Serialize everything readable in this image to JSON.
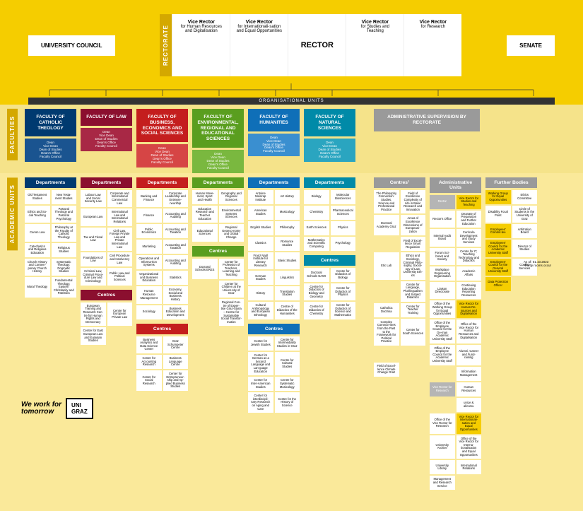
{
  "top": {
    "council": "UNIVERSITY COUNCIL",
    "senate": "SENATE",
    "rectorate": "RECTORATE",
    "rector": "RECTOR",
    "vrs": [
      {
        "t": "Vice Rector",
        "s": "for Human Resources and Digitalisation"
      },
      {
        "t": "Vice Rector",
        "s": "for Internationali-sation and Equal Opportunities"
      },
      {
        "t": "Vice Rector",
        "s": "for Studies and Teaching"
      },
      {
        "t": "Vice Rector",
        "s": "for Research"
      }
    ],
    "org_units": "ORGANISATIONAL UNITS"
  },
  "labels": {
    "faculties": "FACULTIES",
    "academic": "ACADEMIC UNITS"
  },
  "colors": {
    "theo": "#003a70",
    "theo2": "#1a5490",
    "law": "#8b0f2f",
    "law2": "#a82845",
    "bus": "#c41e1e",
    "bus2": "#d64545",
    "env": "#5a9e1f",
    "env2": "#7ab83f",
    "hum": "#0f6fb8",
    "hum2": "#3a8fd0",
    "nat": "#008aa8",
    "nat2": "#2aa5c0",
    "admin": "#9a9a9a",
    "admin2": "#b5b5b5",
    "yellow": "#f5cd00"
  },
  "faculties": [
    {
      "name": "FACULTY OF CATHOLIC THEOLOGY",
      "c": "theo",
      "sub": "Dean\nVice Dean\nDean of Studies\nDean's Office\nFaculty Council"
    },
    {
      "name": "FACULTY OF LAW",
      "c": "law",
      "sub": "Dean\nVice Dean\nDean of Studies\nDean's Office\nFaculty Council"
    },
    {
      "name": "FACULTY OF BUSINESS, ECONOMICS AND SOCIAL SCIENCES",
      "c": "bus",
      "sub": "Dean\nVice Dean\nDean of Studies\nDean's Office\nFaculty Council"
    },
    {
      "name": "FACULTY OF ENVIRONMENTAL, REGIONAL AND EDUCATIONAL SCIENCES",
      "c": "env",
      "sub": "Dean\nVice Dean\nDean of Studies\nDean's Office\nFaculty Council"
    },
    {
      "name": "FACULTY OF HUMANITIES",
      "c": "hum",
      "sub": "Dean\nVice Dean\nDean of Studies\nDean's Office\nFaculty Council"
    },
    {
      "name": "FACULTY OF NATURAL SCIENCES",
      "c": "nat",
      "sub": "Dean\nVice Dean\nDean of Studies\nDean's Office\nFaculty Council"
    },
    {
      "name": "ADMINISTRATIVE SUPERVISION BY RECTORATE",
      "c": "admin",
      "sub": ""
    }
  ],
  "columns": {
    "theo": {
      "dept": "Departments",
      "items": [
        "Old Testament Studies",
        "New Testa-ment Studies",
        "Ethics and So-cial Teaching",
        "Pastoral Theology and Pastoral Psychology",
        "Canon Law",
        "Philosophy at the Faculty of Catholic Theology",
        "Catechetics and Religious Education",
        "Religious Studies",
        "Church History and Contem-porary Church History",
        "Systematic Theology: Dogmatic Studies",
        "Moral Theology",
        "Fundamental Theology, Eastern Christianity and Patristics"
      ]
    },
    "law": {
      "dept": "Departments",
      "items": [
        "Labour Law and Social Security Law",
        "Corporate and International Commercial Law",
        "European Law",
        "International Law and International Relations",
        "Tax and Fiscal Law",
        "Civil Law, Foreign Private Law and Private International Law",
        "Foundations of Law",
        "Civil Procedure and Insolvency Law",
        "Criminal Law, Criminal Proce-dure Law and Criminology",
        "Public Law and Political Sciences"
      ],
      "centres": "Centres",
      "citems": [
        "European Training and Research Cen-tre for Human Rights and Democracy",
        "Centre for European Private Law",
        "Centre for East European Law and Eurasian Studies",
        ""
      ]
    },
    "bus": {
      "dept": "Departments",
      "items": [
        "Banking and Finance",
        "Corporate Leadership and Entrepre-neurship",
        "Finance",
        "Accounting and Auditing",
        "Public Economics",
        "Accounting and Taxation",
        "Marketing",
        "Accounting and Taxation",
        "Operations and Informa-tion Systems",
        "Accounting and Auditing",
        "Organizational and Business Education",
        "Statistics",
        "Human Resource Management",
        "Economy, Social and Business History",
        "Sociology",
        "Business Education and Development"
      ],
      "centres": "Centres",
      "citems": [
        "Business Analytics and Data Science Center",
        "Graz Schumpeter Centre",
        "Center for Accounting Research",
        "Business Language Centre",
        "Center for Social Research",
        "Center for Entrepreneur-ship and Ap-plied Business Studies"
      ]
    },
    "env": {
      "dept": "Departments",
      "items": [
        "Human Move-ment, Sport and Health",
        "Geography and Regional Sciences",
        "Education Research and Teacher Education",
        "Environmental Systems Sciences",
        "Educational Sciences",
        "Regional Geoeco-nomy and Global Change"
      ],
      "centres": "Centres",
      "citems": [
        "Doctoral Schools ERES",
        "Center for Profession of Teachers, Learning and Teaching",
        "",
        "Center for Children at the Univer-sity of Graz",
        "",
        "Regional Cen-tre of Exper-tise Graz-Styria – Centre for Sustainable Social Transfor-mation"
      ]
    },
    "hum": {
      "dept": "Departments",
      "items": [
        "Antoine Meinrap Institute",
        "Art History",
        "American Studies",
        "Musicology",
        "English Studies",
        "Philosophy",
        "Classics",
        "Romance Studies",
        "Franz Nabl Institute for Literary Research",
        "Slavic Studies",
        "German Studies",
        "Linguistics",
        "History",
        "Translation Studies",
        "Cultural Anthropology and European Ethnology",
        "Centre of Didactics of the Humanities"
      ],
      "centres": "Centres",
      "citems": [
        "Centre for Jewish Studies",
        "Centre for Intermediality Studies in Graz",
        "Center for German as a Second Language and Lan-guage Education",
        "Centre for Cultural Studies",
        "Centre for Inter-American Studies",
        "Centre for Systematic Musicology",
        "Center for interdiscipli-nary Research on Aging and Care",
        "Centre for the History of Science"
      ]
    },
    "nat": {
      "dept": "Departments",
      "items": [
        "Biology",
        "Molecular Biosciences",
        "Chemistry",
        "Pharmaceutical Sciences",
        "Earth Sciences",
        "Physics",
        "Mathematics and Scientific Computing",
        "Psychology"
      ],
      "centres": "Centres",
      "citems": [
        "Doctoral Schools NAWI",
        "Centre for Didactics of Biology",
        "Centre for Didactics of Biology and Geometry",
        "Centre for Didactics of Physics",
        "Centre for Didactics of Chemistry",
        "Centre for Didactics of Science and Mathematics"
      ]
    }
  },
  "admin": {
    "centres_h": "Centres¹",
    "centres": [
      "The Philosophy Connection: Studies, Science and Professional Practice",
      "Field of Excellence Complexity of Life in Basic Research and Innovation",
      "Doctoral Academy Graz",
      "Areas of Excellence Dimensions of Europeani-zation",
      "",
      "Field of Excel-lence Smart Regulation",
      "Etic Lab",
      "Ethics and Sociology, Criminal Philo-sophy, Sociol-ogy of Law, University Eth-ics",
      "",
      "Centre for Language, Plurilingualism and Subject Didactics",
      "Catholica Doctrina",
      "Center for Teacher Training",
      "Complex Commun-ities from the Past to the Framework for Political Practice",
      "Center for South Sciences",
      "",
      "",
      "Field of Excel-lence Climate Change Graz",
      ""
    ],
    "admin_h": "Administrative Units",
    "admin_grid": [
      {
        "t": "Rector",
        "c": "admin2"
      },
      {
        "t": "Vice Rector for Studies and Teaching",
        "c": "yellow"
      },
      {
        "t": "Rector's Office",
        "c": ""
      },
      {
        "t": "Deanate of Preparation and Further Education",
        "c": ""
      },
      {
        "t": "Internal Audit Board",
        "c": ""
      },
      {
        "t": "Curricula Development and Study Services",
        "c": ""
      },
      {
        "t": "Forum Sci-bonet and Society",
        "c": ""
      },
      {
        "t": "Centre for IT, Teaching Technology and Didactics",
        "c": ""
      },
      {
        "t": "Workplace Engineering Organisation",
        "c": ""
      },
      {
        "t": "Academic Affairs",
        "c": ""
      },
      {
        "t": "Liaison Directorate",
        "c": ""
      },
      {
        "t": "Continuing Education Reporting Resources",
        "c": ""
      },
      {
        "t": "Office of the Working Group for Equal Opportunities",
        "c": ""
      },
      {
        "t": "Vice Rector for Human Re-sources and Digitalisation",
        "c": "yellow"
      },
      {
        "t": "Office of the Employee Council for the Ge-man Academic University Staff",
        "c": ""
      },
      {
        "t": "Office of the Vice Rector for Human Resources and Digitalisation",
        "c": ""
      },
      {
        "t": "Office of the Employee Council for the Academic University Staff",
        "c": ""
      },
      {
        "t": "Alumni, Career and Fund-raising",
        "c": ""
      },
      {
        "t": "",
        "c": ""
      },
      {
        "t": "Information Management",
        "c": ""
      },
      {
        "t": "Vice Rector for Research",
        "c": "admin2"
      },
      {
        "t": "Human Resources",
        "c": ""
      },
      {
        "t": "",
        "c": ""
      },
      {
        "t": "uniLe & allcomu",
        "c": ""
      },
      {
        "t": "Office of the Vice Rector for Research",
        "c": ""
      },
      {
        "t": "Vice Rector for Internationali-sation and Equal Opportunities",
        "c": "yellow"
      },
      {
        "t": "University Archive",
        "c": ""
      },
      {
        "t": "Office of the Vice Rector for Interna-tionalisation and Equal Opportunities",
        "c": ""
      },
      {
        "t": "University Library",
        "c": ""
      },
      {
        "t": "International Relations",
        "c": ""
      },
      {
        "t": "Management and Research Service",
        "c": ""
      },
      {
        "t": "",
        "c": ""
      }
    ],
    "further_h": "Further Bodies",
    "further": [
      {
        "t": "Working Group for Equal Opportunities",
        "c": "yellow"
      },
      {
        "t": "Ethics Committee",
        "c": ""
      },
      {
        "t": "Disability Focal Point",
        "c": ""
      },
      {
        "t": "Circle of Students in the University of Graz",
        "c": ""
      },
      {
        "t": "Employees' Commit-tee",
        "c": "yellow"
      },
      {
        "t": "Arbitration Board",
        "c": ""
      },
      {
        "t": "Employees' Council for the Academic University Staff",
        "c": "yellow"
      },
      {
        "t": "Director of Studies",
        "c": ""
      },
      {
        "t": "Employees' Council for the General University Staff",
        "c": "yellow"
      },
      {
        "t": "Conflict Services",
        "c": ""
      },
      {
        "t": "Data Protection Officer",
        "c": "yellow"
      },
      {
        "t": "",
        "c": ""
      }
    ]
  },
  "footer": {
    "wwf": "We work for",
    "tomorrow": "tomorrow",
    "uni": "UNI\nGRAZ"
  },
  "asof": "As of: 01.10.2023\n¹Partly rooms occur"
}
